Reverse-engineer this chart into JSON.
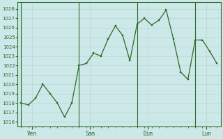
{
  "x_labels": [
    "Ven",
    "Sam",
    "Dim",
    "Lun"
  ],
  "day_line_x": [
    10,
    82,
    154,
    226
  ],
  "yticks": [
    1016,
    1017,
    1018,
    1019,
    1020,
    1021,
    1022,
    1023,
    1024,
    1025,
    1026,
    1027,
    1028
  ],
  "ylim": [
    1015.5,
    1028.7
  ],
  "data_y": [
    1018.0,
    1017.8,
    1018.5,
    1020.0,
    1019.0,
    1018.0,
    1016.5,
    1018.0,
    1022.0,
    1022.2,
    1023.3,
    1023.0,
    1024.8,
    1026.2,
    1025.2,
    1022.5,
    1026.4,
    1027.0,
    1026.3,
    1026.8,
    1027.9,
    1024.8,
    1021.3,
    1020.5,
    1024.7,
    1024.7,
    1023.5,
    1022.2
  ],
  "line_color": "#2a6b2a",
  "bg_color": "#cce8e8",
  "grid_major_color": "#b8d8cc",
  "grid_minor_color": "#d4e8e0",
  "axis_color": "#2a6b2a",
  "tick_label_color": "#2a6b2a",
  "day_line_color": "#2a6b2a"
}
